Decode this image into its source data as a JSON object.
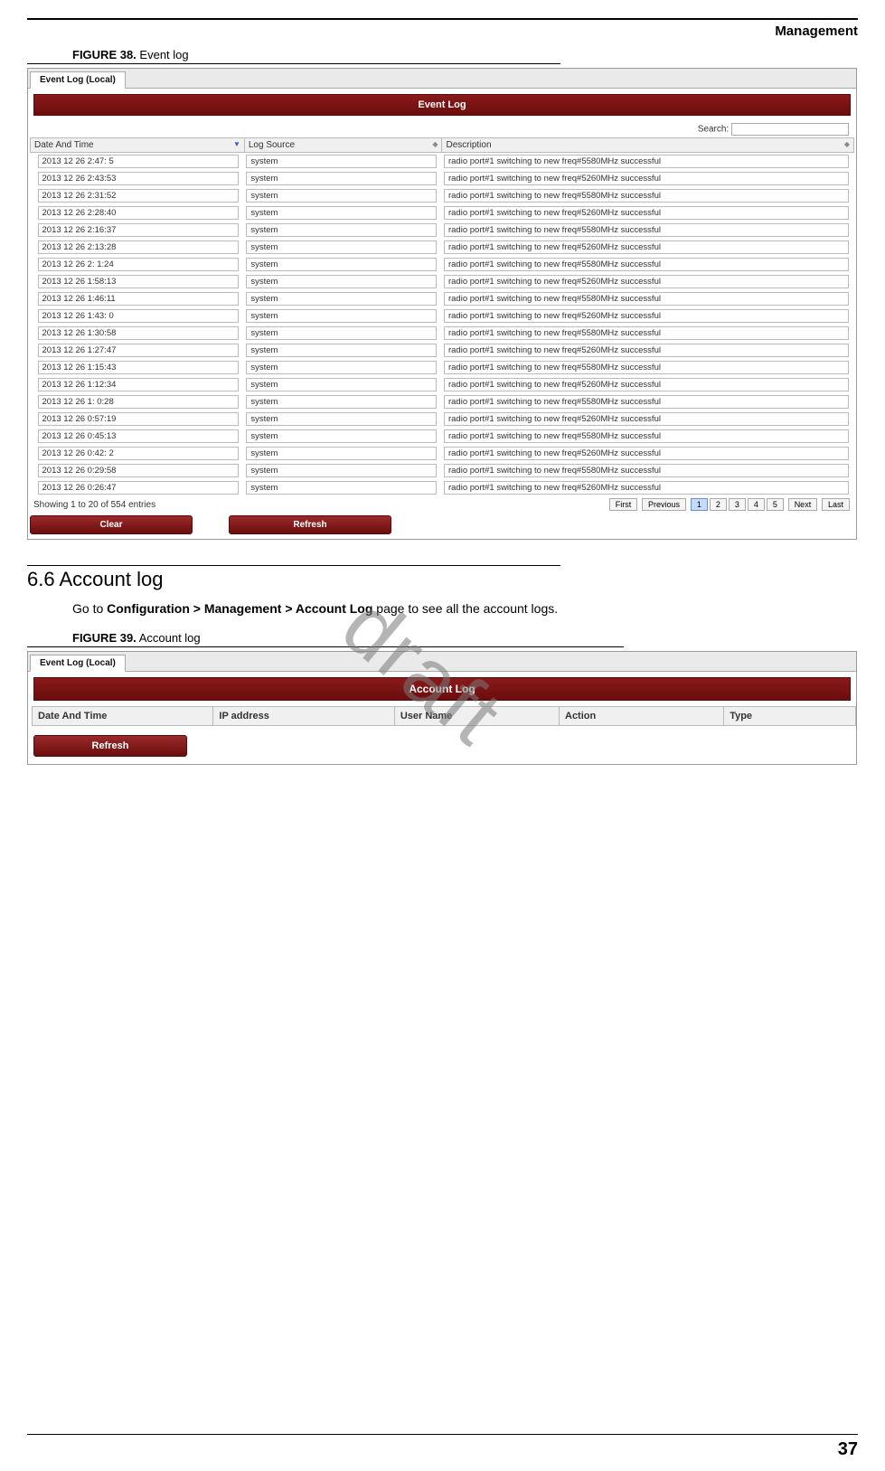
{
  "header": {
    "section": "Management"
  },
  "figure38": {
    "label": "FIGURE 38.",
    "title": "Event log"
  },
  "watermark": "draft",
  "eventLog": {
    "tab": "Event Log (Local)",
    "panelTitle": "Event Log",
    "searchLabel": "Search:",
    "columns": {
      "date": "Date And Time",
      "source": "Log Source",
      "desc": "Description"
    },
    "rows": [
      {
        "date": "2013 12 26   2:47:  5",
        "src": "system",
        "desc": "radio port#1 switching to new freq#5580MHz successful"
      },
      {
        "date": "2013 12 26   2:43:53",
        "src": "system",
        "desc": "radio port#1 switching to new freq#5260MHz successful"
      },
      {
        "date": "2013 12 26   2:31:52",
        "src": "system",
        "desc": "radio port#1 switching to new freq#5580MHz successful"
      },
      {
        "date": "2013 12 26   2:28:40",
        "src": "system",
        "desc": "radio port#1 switching to new freq#5260MHz successful"
      },
      {
        "date": "2013 12 26   2:16:37",
        "src": "system",
        "desc": "radio port#1 switching to new freq#5580MHz successful"
      },
      {
        "date": "2013 12 26   2:13:28",
        "src": "system",
        "desc": "radio port#1 switching to new freq#5260MHz successful"
      },
      {
        "date": "2013 12 26   2:  1:24",
        "src": "system",
        "desc": "radio port#1 switching to new freq#5580MHz successful"
      },
      {
        "date": "2013 12 26   1:58:13",
        "src": "system",
        "desc": "radio port#1 switching to new freq#5260MHz successful"
      },
      {
        "date": "2013 12 26   1:46:11",
        "src": "system",
        "desc": "radio port#1 switching to new freq#5580MHz successful"
      },
      {
        "date": "2013 12 26   1:43:  0",
        "src": "system",
        "desc": "radio port#1 switching to new freq#5260MHz successful"
      },
      {
        "date": "2013 12 26   1:30:58",
        "src": "system",
        "desc": "radio port#1 switching to new freq#5580MHz successful"
      },
      {
        "date": "2013 12 26   1:27:47",
        "src": "system",
        "desc": "radio port#1 switching to new freq#5260MHz successful"
      },
      {
        "date": "2013 12 26   1:15:43",
        "src": "system",
        "desc": "radio port#1 switching to new freq#5580MHz successful"
      },
      {
        "date": "2013 12 26   1:12:34",
        "src": "system",
        "desc": "radio port#1 switching to new freq#5260MHz successful"
      },
      {
        "date": "2013 12 26   1:  0:28",
        "src": "system",
        "desc": "radio port#1 switching to new freq#5580MHz successful"
      },
      {
        "date": "2013 12 26   0:57:19",
        "src": "system",
        "desc": "radio port#1 switching to new freq#5260MHz successful"
      },
      {
        "date": "2013 12 26   0:45:13",
        "src": "system",
        "desc": "radio port#1 switching to new freq#5580MHz successful"
      },
      {
        "date": "2013 12 26   0:42:  2",
        "src": "system",
        "desc": "radio port#1 switching to new freq#5260MHz successful"
      },
      {
        "date": "2013 12 26   0:29:58",
        "src": "system",
        "desc": "radio port#1 switching to new freq#5580MHz successful"
      },
      {
        "date": "2013 12 26   0:26:47",
        "src": "system",
        "desc": "radio port#1 switching to new freq#5260MHz successful"
      }
    ],
    "entriesText": "Showing 1 to 20 of 554 entries",
    "pager": {
      "first": "First",
      "prev": "Previous",
      "pages": [
        "1",
        "2",
        "3",
        "4",
        "5"
      ],
      "next": "Next",
      "last": "Last",
      "active": 0
    },
    "buttons": {
      "clear": "Clear",
      "refresh": "Refresh"
    },
    "colWidths": {
      "date": "26%",
      "source": "24%",
      "desc": "50%"
    }
  },
  "section66": {
    "heading": "6.6 Account log",
    "body_prefix": "Go to ",
    "body_bold": "Configuration > Management > Account Log",
    "body_suffix": " page to see all the account logs."
  },
  "figure39": {
    "label": "FIGURE 39.",
    "title": "Account log"
  },
  "accountLog": {
    "tab": "Event Log (Local)",
    "panelTitle": "Account Log",
    "columns": {
      "date": "Date And Time",
      "ip": "IP address",
      "user": "User Name",
      "action": "Action",
      "type": "Type"
    },
    "refresh": "Refresh"
  },
  "pageNumber": "37",
  "colors": {
    "panelHeaderTop": "#8a1a1a",
    "panelHeaderBottom": "#6b0d0d",
    "buttonTop": "#9a2a2a",
    "buttonBottom": "#6b0d0d",
    "border": "#bbbbbb",
    "pageActiveBg": "#c8dafc"
  }
}
